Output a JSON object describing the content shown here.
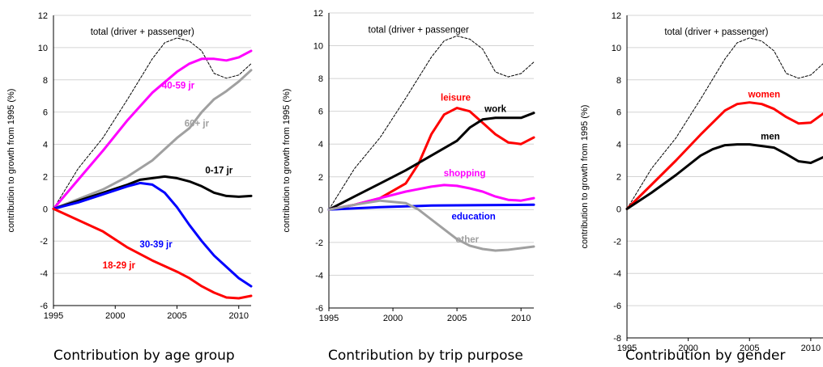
{
  "chart_data": [
    {
      "type": "line",
      "ylabel": "contribution to growth from  1995 (%)",
      "ylim": [
        -6,
        12
      ],
      "ytick_step": 2,
      "xlim": [
        1995,
        2011
      ],
      "xticks": [
        1995,
        2000,
        2005,
        2010
      ],
      "grid": true,
      "caption": "Contribution by age group",
      "series": [
        {
          "name": "total (driver + passenger)",
          "color": "#000000",
          "dashed": true,
          "label_color": "#000000",
          "x": [
            1995,
            1997,
            1999,
            2001,
            2003,
            2004,
            2005,
            2006,
            2007,
            2008,
            2009,
            2010,
            2011
          ],
          "y": [
            0,
            2.5,
            4.4,
            6.8,
            9.3,
            10.3,
            10.6,
            10.4,
            9.8,
            8.4,
            8.1,
            8.3,
            9.0
          ]
        },
        {
          "name": "40-59 jr",
          "color": "#ff00ff",
          "dashed": false,
          "label_color": "#ff00ff",
          "x": [
            1995,
            1997,
            1999,
            2001,
            2003,
            2005,
            2006,
            2007,
            2008,
            2009,
            2010,
            2011
          ],
          "y": [
            0,
            1.8,
            3.6,
            5.5,
            7.2,
            8.5,
            9.0,
            9.3,
            9.3,
            9.2,
            9.4,
            9.8
          ]
        },
        {
          "name": "60+ jr",
          "color": "#a0a0a0",
          "dashed": false,
          "label_color": "#a0a0a0",
          "x": [
            1995,
            1997,
            1999,
            2001,
            2003,
            2005,
            2006,
            2007,
            2008,
            2009,
            2010,
            2011
          ],
          "y": [
            0,
            0.6,
            1.2,
            2.0,
            3.0,
            4.4,
            5.0,
            6.0,
            6.8,
            7.3,
            7.9,
            8.6
          ]
        },
        {
          "name": "0-17 jr",
          "color": "#000000",
          "dashed": false,
          "label_color": "#000000",
          "x": [
            1995,
            1997,
            1999,
            2001,
            2002,
            2003,
            2004,
            2005,
            2006,
            2007,
            2008,
            2009,
            2010,
            2011
          ],
          "y": [
            0,
            0.5,
            1.0,
            1.5,
            1.8,
            1.9,
            2.0,
            1.9,
            1.7,
            1.4,
            1.0,
            0.8,
            0.75,
            0.8
          ]
        },
        {
          "name": "30-39 jr",
          "color": "#0000ff",
          "dashed": false,
          "label_color": "#0000ff",
          "x": [
            1995,
            1997,
            1999,
            2001,
            2002,
            2003,
            2004,
            2005,
            2006,
            2007,
            2008,
            2009,
            2010,
            2011
          ],
          "y": [
            0,
            0.4,
            0.9,
            1.4,
            1.6,
            1.5,
            1.0,
            0.1,
            -1.0,
            -2.0,
            -2.9,
            -3.6,
            -4.3,
            -4.8
          ]
        },
        {
          "name": "18-29 jr",
          "color": "#ff0000",
          "dashed": false,
          "label_color": "#ff0000",
          "x": [
            1995,
            1997,
            1999,
            2001,
            2003,
            2005,
            2006,
            2007,
            2008,
            2009,
            2010,
            2011
          ],
          "y": [
            0,
            -0.7,
            -1.4,
            -2.4,
            -3.2,
            -3.9,
            -4.3,
            -4.8,
            -5.2,
            -5.5,
            -5.55,
            -5.4
          ]
        }
      ],
      "labels": [
        {
          "text": "total (driver + passenger)",
          "x": 2002.2,
          "y": 10.8,
          "color": "#000000"
        },
        {
          "text": "40-59 jr",
          "x": 2005.1,
          "y": 7.45,
          "color": "#ff00ff"
        },
        {
          "text": "60+ jr",
          "x": 2006.6,
          "y": 5.1,
          "color": "#a0a0a0"
        },
        {
          "text": "0-17 jr",
          "x": 2008.4,
          "y": 2.2,
          "color": "#000000"
        },
        {
          "text": "30-39 jr",
          "x": 2003.3,
          "y": -2.4,
          "color": "#0000ff"
        },
        {
          "text": "18-29 jr",
          "x": 2000.3,
          "y": -3.7,
          "color": "#ff0000"
        }
      ]
    },
    {
      "type": "line",
      "ylabel": "contribution to growth from  1995 (%)",
      "ylim": [
        -6,
        12
      ],
      "ytick_step": 2,
      "xlim": [
        1995,
        2011
      ],
      "xticks": [
        1995,
        2000,
        2005,
        2010
      ],
      "grid": true,
      "caption": "Contribution by trip purpose",
      "series": [
        {
          "name": "total (driver + passenger",
          "color": "#000000",
          "dashed": true,
          "label_color": "#000000",
          "x": [
            1995,
            1997,
            1999,
            2001,
            2003,
            2004,
            2005,
            2006,
            2007,
            2008,
            2009,
            2010,
            2011
          ],
          "y": [
            0,
            2.5,
            4.4,
            6.8,
            9.3,
            10.3,
            10.6,
            10.4,
            9.8,
            8.4,
            8.1,
            8.3,
            9.0
          ]
        },
        {
          "name": "leisure",
          "color": "#ff0000",
          "dashed": false,
          "label_color": "#ff0000",
          "x": [
            1995,
            1997,
            1999,
            2001,
            2002,
            2003,
            2004,
            2005,
            2006,
            2007,
            2008,
            2009,
            2010,
            2011
          ],
          "y": [
            0,
            0.3,
            0.7,
            1.6,
            2.8,
            4.6,
            5.8,
            6.2,
            6.0,
            5.3,
            4.6,
            4.1,
            4.0,
            4.4
          ]
        },
        {
          "name": "work",
          "color": "#000000",
          "dashed": false,
          "label_color": "#000000",
          "x": [
            1995,
            1997,
            1999,
            2001,
            2003,
            2005,
            2006,
            2007,
            2008,
            2009,
            2010,
            2011
          ],
          "y": [
            0,
            0.8,
            1.6,
            2.4,
            3.3,
            4.2,
            5.0,
            5.5,
            5.6,
            5.6,
            5.6,
            5.9
          ]
        },
        {
          "name": "shopping",
          "color": "#ff00ff",
          "dashed": false,
          "label_color": "#ff00ff",
          "x": [
            1995,
            1997,
            1999,
            2001,
            2003,
            2004,
            2005,
            2006,
            2007,
            2008,
            2009,
            2010,
            2011
          ],
          "y": [
            0,
            0.3,
            0.7,
            1.1,
            1.4,
            1.5,
            1.45,
            1.3,
            1.1,
            0.8,
            0.6,
            0.55,
            0.7
          ]
        },
        {
          "name": "education",
          "color": "#0000ff",
          "dashed": false,
          "label_color": "#0000ff",
          "x": [
            1995,
            1999,
            2003,
            2007,
            2011
          ],
          "y": [
            0,
            0.15,
            0.25,
            0.28,
            0.3
          ]
        },
        {
          "name": "other",
          "color": "#a0a0a0",
          "dashed": false,
          "label_color": "#a0a0a0",
          "x": [
            1995,
            1997,
            1999,
            2001,
            2002,
            2003,
            2004,
            2005,
            2006,
            2007,
            2008,
            2009,
            2010,
            2011
          ],
          "y": [
            0,
            0.3,
            0.55,
            0.4,
            0.0,
            -0.6,
            -1.2,
            -1.8,
            -2.2,
            -2.4,
            -2.5,
            -2.45,
            -2.35,
            -2.25
          ]
        }
      ],
      "labels": [
        {
          "text": "total (driver + passenger",
          "x": 2002.0,
          "y": 10.8,
          "color": "#000000"
        },
        {
          "text": "leisure",
          "x": 2004.9,
          "y": 6.65,
          "color": "#ff0000"
        },
        {
          "text": "work",
          "x": 2008.0,
          "y": 5.95,
          "color": "#000000"
        },
        {
          "text": "shopping",
          "x": 2005.6,
          "y": 2.05,
          "color": "#ff00ff"
        },
        {
          "text": "education",
          "x": 2006.3,
          "y": -0.6,
          "color": "#0000ff"
        },
        {
          "text": "other",
          "x": 2005.8,
          "y": -2.0,
          "color": "#a0a0a0"
        }
      ]
    },
    {
      "type": "line",
      "ylabel": "contribution to growth from  1995 (%)",
      "ylim": [
        -8,
        12
      ],
      "ytick_step": 2,
      "xlim": [
        1995,
        2011
      ],
      "xticks": [
        1995,
        2000,
        2005,
        2010
      ],
      "grid": true,
      "caption": "Contribution by gender",
      "series": [
        {
          "name": "total (driver + passenger)",
          "color": "#000000",
          "dashed": true,
          "label_color": "#000000",
          "x": [
            1995,
            1997,
            1999,
            2001,
            2003,
            2004,
            2005,
            2006,
            2007,
            2008,
            2009,
            2010,
            2011
          ],
          "y": [
            0,
            2.5,
            4.4,
            6.8,
            9.3,
            10.3,
            10.6,
            10.4,
            9.8,
            8.4,
            8.1,
            8.3,
            9.0
          ]
        },
        {
          "name": "women",
          "color": "#ff0000",
          "dashed": false,
          "label_color": "#ff0000",
          "x": [
            1995,
            1997,
            1999,
            2001,
            2003,
            2004,
            2005,
            2006,
            2007,
            2008,
            2009,
            2010,
            2011
          ],
          "y": [
            0,
            1.5,
            3.0,
            4.6,
            6.1,
            6.5,
            6.6,
            6.5,
            6.2,
            5.7,
            5.3,
            5.35,
            5.9
          ]
        },
        {
          "name": "men",
          "color": "#000000",
          "dashed": false,
          "label_color": "#000000",
          "x": [
            1995,
            1997,
            1999,
            2001,
            2002,
            2003,
            2004,
            2005,
            2006,
            2007,
            2008,
            2009,
            2010,
            2011
          ],
          "y": [
            0,
            1.0,
            2.1,
            3.3,
            3.7,
            3.95,
            4.0,
            4.0,
            3.9,
            3.8,
            3.4,
            2.95,
            2.85,
            3.2
          ]
        }
      ],
      "labels": [
        {
          "text": "total (driver + passenger)",
          "x": 2002.3,
          "y": 10.8,
          "color": "#000000"
        },
        {
          "text": "women",
          "x": 2006.2,
          "y": 6.9,
          "color": "#ff0000"
        },
        {
          "text": "men",
          "x": 2006.7,
          "y": 4.3,
          "color": "#000000"
        }
      ]
    }
  ]
}
